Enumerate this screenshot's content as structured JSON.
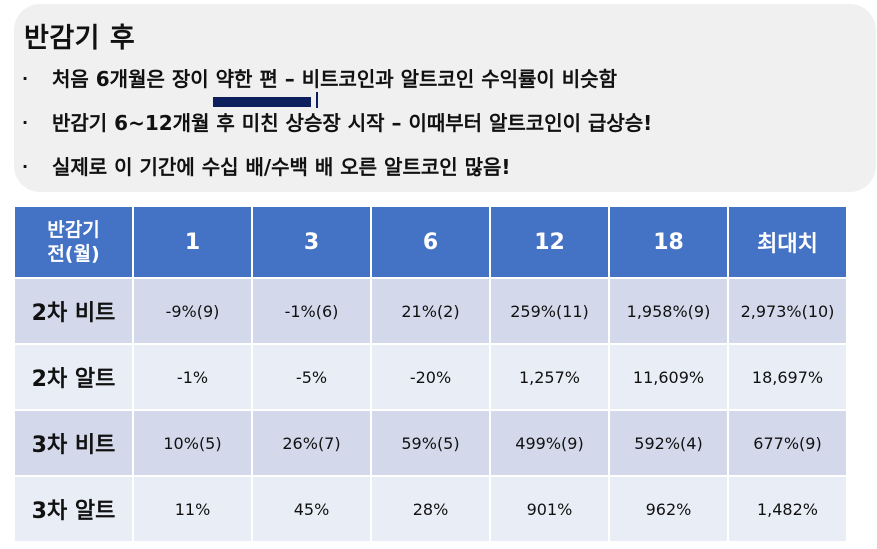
{
  "summary": {
    "title": "반감기 후",
    "bullet_glyph": "·",
    "bullets": [
      "처음 6개월은 장이 약한 편 – 비트코인과 알트코인 수익률이 비슷함",
      "반감기 6~12개월 후 미친 상승장 시작 – 이때부터 알트코인이 급상승!",
      "실제로 이 기간에 수십 배/수백 배 오른 알트코인 많음!"
    ]
  },
  "table": {
    "corner_header": [
      "반감기",
      "전(월)"
    ],
    "columns": [
      "1",
      "3",
      "6",
      "12",
      "18",
      "최대치"
    ],
    "rows": [
      {
        "label": "2차 비트",
        "cells": [
          "-9%(9)",
          "-1%(6)",
          "21%(2)",
          "259%(11)",
          "1,958%(9)",
          "2,973%(10)"
        ]
      },
      {
        "label": "2차 알트",
        "cells": [
          "-1%",
          "-5%",
          "-20%",
          "1,257%",
          "11,609%",
          "18,697%"
        ]
      },
      {
        "label": "3차 비트",
        "cells": [
          "10%(5)",
          "26%(7)",
          "59%(5)",
          "499%(9)",
          "592%(4)",
          "677%(9)"
        ]
      },
      {
        "label": "3차 알트",
        "cells": [
          "11%",
          "45%",
          "28%",
          "901%",
          "962%",
          "1,482%"
        ]
      }
    ]
  },
  "colors": {
    "header_bg": "#4472c4",
    "row_dark": "#d3d9ea",
    "row_light": "#e9edf5",
    "redaction": "#0d1f5c",
    "summary_bg": "#f0f0f0"
  }
}
